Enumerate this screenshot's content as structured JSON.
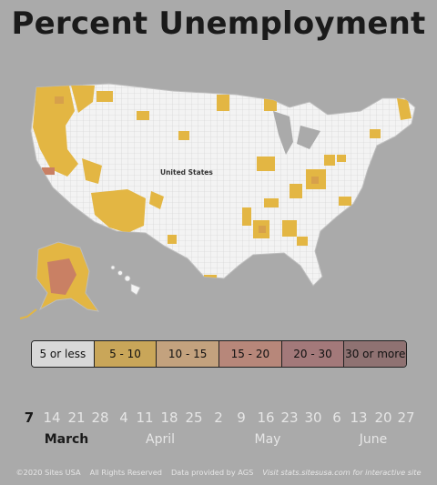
{
  "title": "Percent Unemployment",
  "map": {
    "label": "United States",
    "colors": {
      "background": "#aaaaaa",
      "land": "#f3f3f3",
      "border": "#cfcfcf",
      "bin_5_10": "#e3b643",
      "bin_10_15": "#d7a04b",
      "bin_15_20": "#c98064",
      "bin_20_30": "#b46e6a"
    }
  },
  "legend": {
    "bins": [
      {
        "label": "5 or less",
        "color": "#d8d8d8"
      },
      {
        "label": "5 - 10",
        "color": "#c9a659"
      },
      {
        "label": "10 - 15",
        "color": "#c3a27e"
      },
      {
        "label": "15 - 20",
        "color": "#b7877a"
      },
      {
        "label": "20 - 30",
        "color": "#a3797a"
      },
      {
        "label": "30 or more",
        "color": "#8f7272"
      }
    ]
  },
  "timeline": {
    "dates": [
      "7",
      "14",
      "21",
      "28",
      "4",
      "11",
      "18",
      "25",
      "2",
      "9",
      "16",
      "23",
      "30",
      "6",
      "13",
      "20",
      "27"
    ],
    "active_date": "7",
    "months": [
      "March",
      "April",
      "May",
      "June"
    ],
    "active_month": "March"
  },
  "footer": {
    "copyright": "©2020 Sites USA",
    "rights": "All Rights Reserved",
    "provider": "Data provided by AGS",
    "visit": "Visit stats.sitesusa.com for interactive site"
  }
}
